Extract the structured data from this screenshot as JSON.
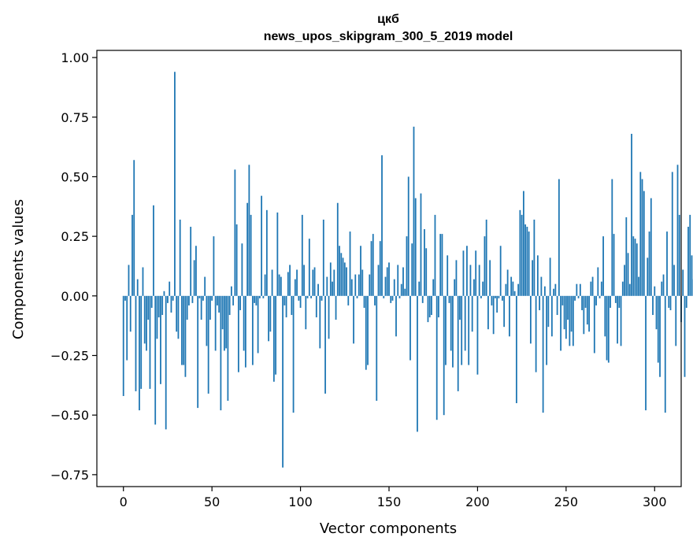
{
  "chart_data": {
    "type": "bar",
    "title_line1": "цкб",
    "title_line2": "news_upos_skipgram_300_5_2019 model",
    "xlabel": "Vector components",
    "ylabel": "Components values",
    "xlim": [
      -15,
      315
    ],
    "ylim": [
      -0.8,
      1.03
    ],
    "xticks": [
      0,
      50,
      100,
      150,
      200,
      250,
      300
    ],
    "yticks": [
      -0.75,
      -0.5,
      -0.25,
      0.0,
      0.25,
      0.5,
      0.75,
      1.0
    ],
    "ytick_labels": [
      "−0.75",
      "−0.50",
      "−0.25",
      "0.00",
      "0.25",
      "0.50",
      "0.75",
      "1.00"
    ],
    "bar_color": "#1f77b4",
    "values": [
      -0.42,
      -0.02,
      -0.27,
      0.13,
      -0.15,
      0.34,
      0.57,
      -0.4,
      0.07,
      -0.48,
      -0.39,
      0.12,
      -0.2,
      -0.23,
      -0.1,
      -0.39,
      -0.05,
      0.38,
      -0.54,
      -0.18,
      -0.09,
      -0.37,
      -0.08,
      0.02,
      -0.56,
      -0.03,
      0.06,
      -0.07,
      -0.02,
      0.94,
      -0.15,
      -0.18,
      0.32,
      -0.29,
      -0.29,
      -0.34,
      -0.1,
      -0.04,
      0.29,
      -0.03,
      0.15,
      0.21,
      -0.47,
      -0.01,
      -0.1,
      -0.02,
      0.08,
      -0.21,
      -0.41,
      -0.1,
      -0.02,
      0.25,
      -0.23,
      -0.04,
      -0.07,
      -0.48,
      -0.14,
      -0.23,
      -0.22,
      -0.44,
      -0.08,
      0.04,
      -0.04,
      0.53,
      0.3,
      -0.32,
      -0.06,
      0.22,
      -0.23,
      -0.3,
      0.39,
      0.55,
      0.34,
      -0.29,
      -0.03,
      -0.04,
      -0.24,
      -0.01,
      0.42,
      -0.01,
      0.09,
      0.36,
      -0.19,
      -0.15,
      0.11,
      -0.36,
      -0.33,
      0.35,
      0.09,
      0.08,
      -0.72,
      -0.04,
      -0.09,
      0.1,
      0.13,
      -0.08,
      -0.49,
      0.07,
      0.11,
      -0.02,
      -0.05,
      0.34,
      0.13,
      -0.14,
      -0.01,
      0.24,
      -0.01,
      0.11,
      0.12,
      -0.09,
      0.05,
      -0.22,
      -0.02,
      0.32,
      -0.41,
      0.08,
      -0.18,
      0.14,
      0.06,
      0.11,
      -0.1,
      0.39,
      0.21,
      0.18,
      0.16,
      0.14,
      0.12,
      -0.04,
      0.27,
      0.07,
      -0.2,
      0.09,
      -0.01,
      0.09,
      0.21,
      0.11,
      -0.05,
      -0.31,
      -0.29,
      0.09,
      0.23,
      0.26,
      -0.04,
      -0.44,
      0.13,
      0.23,
      0.59,
      -0.01,
      0.08,
      0.12,
      0.14,
      -0.03,
      -0.02,
      0.07,
      -0.17,
      0.13,
      -0.01,
      0.05,
      0.12,
      0.03,
      0.25,
      0.5,
      -0.27,
      0.22,
      0.71,
      0.41,
      -0.57,
      0.06,
      0.43,
      -0.03,
      0.28,
      0.2,
      -0.11,
      -0.09,
      -0.08,
      0.07,
      0.34,
      -0.52,
      -0.09,
      0.26,
      0.26,
      -0.5,
      -0.29,
      0.17,
      -0.03,
      -0.23,
      -0.3,
      0.07,
      0.15,
      -0.4,
      -0.1,
      -0.29,
      0.19,
      -0.23,
      0.21,
      -0.29,
      0.13,
      -0.15,
      0.07,
      0.19,
      -0.33,
      0.13,
      -0.01,
      0.06,
      0.25,
      0.32,
      -0.14,
      0.15,
      -0.04,
      -0.16,
      -0.01,
      -0.07,
      -0.01,
      0.21,
      -0.02,
      -0.13,
      0.05,
      0.11,
      -0.17,
      0.08,
      0.06,
      0.02,
      -0.45,
      0.05,
      0.36,
      0.34,
      0.44,
      0.3,
      0.29,
      0.27,
      -0.2,
      0.15,
      0.32,
      -0.32,
      0.17,
      -0.06,
      0.08,
      -0.49,
      0.04,
      -0.29,
      -0.13,
      0.16,
      -0.17,
      0.03,
      0.05,
      -0.08,
      0.49,
      -0.23,
      -0.04,
      -0.14,
      -0.18,
      -0.1,
      -0.21,
      -0.15,
      -0.21,
      -0.02,
      0.05,
      -0.01,
      0.05,
      -0.06,
      -0.16,
      -0.05,
      -0.12,
      -0.15,
      0.06,
      0.08,
      -0.24,
      -0.04,
      0.12,
      -0.01,
      0.06,
      0.25,
      -0.17,
      -0.27,
      -0.28,
      -0.05,
      0.49,
      0.26,
      -0.03,
      -0.2,
      -0.05,
      -0.21,
      0.06,
      0.13,
      0.33,
      0.18,
      0.05,
      0.68,
      0.25,
      0.24,
      0.22,
      0.08,
      0.52,
      0.49,
      0.44,
      -0.48,
      0.16,
      0.27,
      0.41,
      -0.08,
      0.04,
      -0.14,
      -0.28,
      -0.34,
      0.06,
      0.09,
      -0.49,
      0.27,
      -0.05,
      -0.06,
      0.52,
      0.13,
      -0.21,
      0.55,
      0.34,
      -0.11,
      0.11,
      -0.34,
      -0.05,
      0.29,
      0.34,
      0.17,
      0.07,
      0.06,
      0.05,
      -0.03
    ]
  }
}
